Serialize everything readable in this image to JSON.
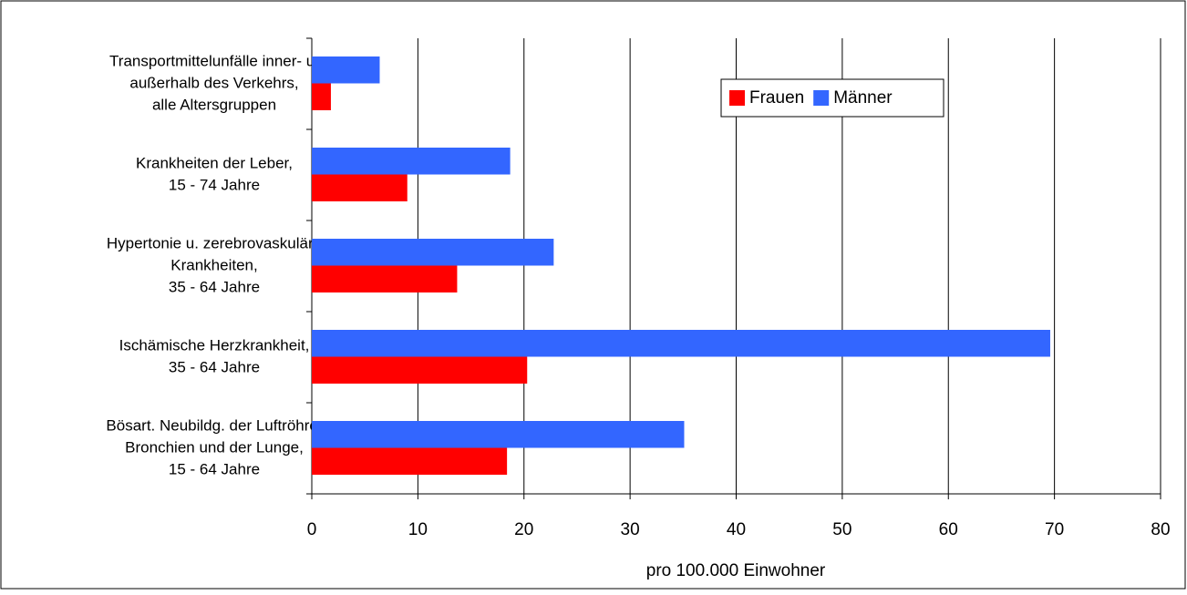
{
  "chart_data": {
    "type": "hbar",
    "xlabel": "pro 100.000 Einwohner",
    "categories": [
      [
        "Transportmittelunfälle inner- u.",
        "außerhalb des Verkehrs,",
        "alle Altersgruppen"
      ],
      [
        "Krankheiten der Leber,",
        "15 - 74 Jahre"
      ],
      [
        "Hypertonie u. zerebrovaskuläre",
        "Krankheiten,",
        "35 - 64 Jahre"
      ],
      [
        "Ischämische Herzkrankheit,",
        "35 - 64 Jahre"
      ],
      [
        "Bösart. Neubildg. der Luftröhre,",
        "Bronchien und der Lunge,",
        "15 - 64 Jahre"
      ]
    ],
    "series": [
      {
        "name": "Frauen",
        "color": "#ff0000",
        "values": [
          1.8,
          9.0,
          13.7,
          20.3,
          18.4
        ]
      },
      {
        "name": "Männer",
        "color": "#3366ff",
        "values": [
          6.4,
          18.7,
          22.8,
          69.6,
          35.1
        ]
      }
    ],
    "xlim": [
      0,
      80
    ],
    "xticks": [
      0,
      10,
      20,
      30,
      40,
      50,
      60,
      70,
      80
    ],
    "grid": true
  }
}
